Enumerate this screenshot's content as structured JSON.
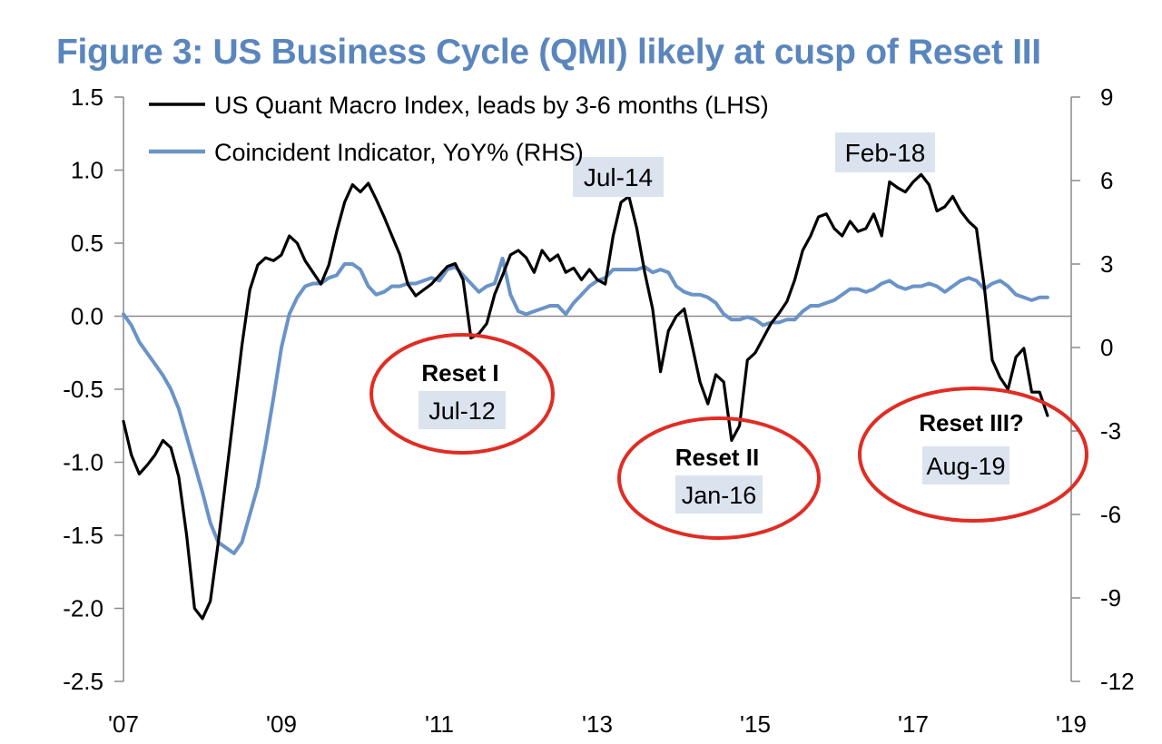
{
  "colors": {
    "title": "#5a86bd",
    "qmi": "#000000",
    "coincident": "#6a93c8",
    "axis": "#8a8a8a",
    "circle": "#e02d24",
    "label_box": "#dbe3ef"
  },
  "chart_data": {
    "type": "line",
    "title": "Figure 3: US Business Cycle (QMI) likely at cusp of Reset III",
    "x_ticks": [
      "'07",
      "'09",
      "'11",
      "'13",
      "'15",
      "'17",
      "'19"
    ],
    "x_range": [
      2007,
      2019
    ],
    "y_left": {
      "range": [
        -2.5,
        1.5
      ],
      "ticks": [
        "1.5",
        "1.0",
        "0.5",
        "0.0",
        "-0.5",
        "-1.0",
        "-1.5",
        "-2.0",
        "-2.5"
      ]
    },
    "y_right": {
      "range": [
        -12,
        9
      ],
      "ticks": [
        "9",
        "6",
        "3",
        "0",
        "-3",
        "-6",
        "-9",
        "-12"
      ]
    },
    "legend": {
      "placement": "top-left",
      "entries": [
        {
          "name": "US Quant Macro Index, leads by 3-6 months (LHS)",
          "series": "qmi"
        },
        {
          "name": "Coincident Indicator, YoY% (RHS)",
          "series": "coincident"
        }
      ]
    },
    "series": [
      {
        "id": "qmi",
        "name": "US Quant Macro Index, leads by 3-6 months (LHS)",
        "axis": "left",
        "x": [
          2007.0,
          2007.1,
          2007.2,
          2007.3,
          2007.4,
          2007.5,
          2007.6,
          2007.7,
          2007.8,
          2007.9,
          2008.0,
          2008.1,
          2008.2,
          2008.3,
          2008.4,
          2008.5,
          2008.6,
          2008.7,
          2008.8,
          2008.9,
          2009.0,
          2009.1,
          2009.2,
          2009.3,
          2009.4,
          2009.5,
          2009.6,
          2009.7,
          2009.8,
          2009.9,
          2010.0,
          2010.1,
          2010.2,
          2010.3,
          2010.4,
          2010.5,
          2010.6,
          2010.7,
          2010.8,
          2010.9,
          2011.0,
          2011.1,
          2011.2,
          2011.3,
          2011.4,
          2011.5,
          2011.6,
          2011.7,
          2011.8,
          2011.9,
          2012.0,
          2012.1,
          2012.2,
          2012.3,
          2012.4,
          2012.5,
          2012.6,
          2012.7,
          2012.8,
          2012.9,
          2013.0,
          2013.1,
          2013.2,
          2013.3,
          2013.4,
          2013.5,
          2013.6,
          2013.7,
          2013.8,
          2013.9,
          2014.0,
          2014.1,
          2014.2,
          2014.3,
          2014.4,
          2014.5,
          2014.6,
          2014.7,
          2014.8,
          2014.9,
          2015.0,
          2015.1,
          2015.2,
          2015.3,
          2015.4,
          2015.5,
          2015.6,
          2015.7,
          2015.8,
          2015.9,
          2016.0,
          2016.1,
          2016.2,
          2016.3,
          2016.4,
          2016.5,
          2016.6,
          2016.7,
          2016.8,
          2016.9,
          2017.0,
          2017.1,
          2017.2,
          2017.3,
          2017.4,
          2017.5,
          2017.6,
          2017.7,
          2017.8,
          2017.9,
          2018.0,
          2018.1,
          2018.2,
          2018.3,
          2018.4,
          2018.5,
          2018.6,
          2018.7
        ],
        "values": [
          -0.72,
          -0.95,
          -1.08,
          -1.02,
          -0.95,
          -0.85,
          -0.9,
          -1.1,
          -1.5,
          -2.0,
          -2.07,
          -1.95,
          -1.55,
          -1.1,
          -0.65,
          -0.2,
          0.18,
          0.35,
          0.4,
          0.38,
          0.42,
          0.55,
          0.5,
          0.38,
          0.3,
          0.22,
          0.35,
          0.58,
          0.78,
          0.9,
          0.85,
          0.91,
          0.8,
          0.68,
          0.55,
          0.42,
          0.22,
          0.14,
          0.18,
          0.22,
          0.28,
          0.34,
          0.36,
          0.25,
          -0.15,
          -0.12,
          -0.05,
          0.15,
          0.28,
          0.42,
          0.45,
          0.4,
          0.3,
          0.45,
          0.38,
          0.42,
          0.3,
          0.33,
          0.25,
          0.32,
          0.25,
          0.22,
          0.55,
          0.78,
          0.82,
          0.6,
          0.3,
          0.05,
          -0.38,
          -0.1,
          0.0,
          0.05,
          -0.2,
          -0.45,
          -0.6,
          -0.4,
          -0.45,
          -0.85,
          -0.75,
          -0.3,
          -0.25,
          -0.15,
          -0.05,
          0.02,
          0.1,
          0.25,
          0.45,
          0.55,
          0.68,
          0.7,
          0.6,
          0.55,
          0.65,
          0.58,
          0.6,
          0.7,
          0.55,
          0.92,
          0.88,
          0.85,
          0.92,
          0.97,
          0.9,
          0.72,
          0.75,
          0.82,
          0.72,
          0.65,
          0.6,
          0.2,
          -0.3,
          -0.42,
          -0.5,
          -0.28,
          -0.22,
          -0.52,
          -0.52,
          -0.68
        ],
        "color": "#000000"
      },
      {
        "id": "coincident",
        "name": "Coincident Indicator, YoY% (RHS)",
        "axis": "right",
        "x": [
          2007.0,
          2007.1,
          2007.2,
          2007.3,
          2007.4,
          2007.5,
          2007.6,
          2007.7,
          2007.8,
          2007.9,
          2008.0,
          2008.1,
          2008.2,
          2008.3,
          2008.4,
          2008.5,
          2008.6,
          2008.7,
          2008.8,
          2008.9,
          2009.0,
          2009.1,
          2009.2,
          2009.3,
          2009.4,
          2009.5,
          2009.6,
          2009.7,
          2009.8,
          2009.9,
          2010.0,
          2010.1,
          2010.2,
          2010.3,
          2010.4,
          2010.5,
          2010.6,
          2010.7,
          2010.8,
          2010.9,
          2011.0,
          2011.1,
          2011.2,
          2011.3,
          2011.4,
          2011.5,
          2011.6,
          2011.7,
          2011.8,
          2011.9,
          2012.0,
          2012.1,
          2012.2,
          2012.3,
          2012.4,
          2012.5,
          2012.6,
          2012.7,
          2012.8,
          2012.9,
          2013.0,
          2013.1,
          2013.2,
          2013.3,
          2013.4,
          2013.5,
          2013.6,
          2013.7,
          2013.8,
          2013.9,
          2014.0,
          2014.1,
          2014.2,
          2014.3,
          2014.4,
          2014.5,
          2014.6,
          2014.7,
          2014.8,
          2014.9,
          2015.0,
          2015.1,
          2015.2,
          2015.3,
          2015.4,
          2015.5,
          2015.6,
          2015.7,
          2015.8,
          2015.9,
          2016.0,
          2016.1,
          2016.2,
          2016.3,
          2016.4,
          2016.5,
          2016.6,
          2016.7,
          2016.8,
          2016.9,
          2017.0,
          2017.1,
          2017.2,
          2017.3,
          2017.4,
          2017.5,
          2017.6,
          2017.7,
          2017.8,
          2017.9,
          2018.0,
          2018.1,
          2018.2,
          2018.3,
          2018.4,
          2018.5,
          2018.6,
          2018.7
        ],
        "values": [
          1.2,
          0.8,
          0.2,
          -0.2,
          -0.6,
          -1.0,
          -1.5,
          -2.2,
          -3.2,
          -4.2,
          -5.2,
          -6.3,
          -7.0,
          -7.2,
          -7.4,
          -7.0,
          -6.0,
          -5.0,
          -3.5,
          -1.8,
          0.0,
          1.2,
          1.8,
          2.2,
          2.3,
          2.3,
          2.5,
          2.6,
          3.0,
          3.0,
          2.8,
          2.2,
          1.9,
          2.0,
          2.2,
          2.2,
          2.3,
          2.3,
          2.4,
          2.5,
          2.4,
          2.8,
          2.9,
          2.6,
          2.3,
          2.0,
          2.2,
          2.3,
          3.2,
          1.9,
          1.3,
          1.2,
          1.3,
          1.4,
          1.5,
          1.5,
          1.2,
          1.6,
          1.9,
          2.2,
          2.4,
          2.5,
          2.8,
          2.8,
          2.8,
          2.8,
          2.9,
          2.7,
          2.8,
          2.7,
          2.2,
          2.0,
          1.9,
          1.9,
          1.8,
          1.6,
          1.2,
          1.0,
          1.0,
          1.1,
          1.0,
          0.8,
          0.9,
          0.9,
          1.0,
          1.0,
          1.3,
          1.5,
          1.5,
          1.6,
          1.7,
          1.9,
          2.1,
          2.1,
          2.0,
          2.1,
          2.3,
          2.4,
          2.2,
          2.1,
          2.2,
          2.2,
          2.3,
          2.2,
          2.0,
          2.2,
          2.4,
          2.5,
          2.4,
          2.1,
          2.3,
          2.4,
          2.2,
          1.9,
          1.8,
          1.7,
          1.8,
          1.8
        ],
        "color": "#6a93c8"
      }
    ],
    "annotations": [
      {
        "type": "label",
        "text": "Jul-14"
      },
      {
        "type": "label",
        "text": "Feb-18"
      },
      {
        "type": "circle",
        "title": "Reset I",
        "date": "Jul-12"
      },
      {
        "type": "circle",
        "title": "Reset II",
        "date": "Jan-16"
      },
      {
        "type": "circle",
        "title": "Reset III?",
        "date": "Aug-19"
      }
    ]
  }
}
